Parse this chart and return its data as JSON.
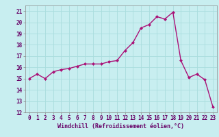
{
  "x": [
    0,
    1,
    2,
    3,
    4,
    5,
    6,
    7,
    8,
    9,
    10,
    11,
    12,
    13,
    14,
    15,
    16,
    17,
    18,
    19,
    20,
    21,
    22,
    23
  ],
  "y": [
    15.0,
    15.4,
    15.0,
    15.6,
    15.8,
    15.9,
    16.1,
    16.3,
    16.3,
    16.3,
    16.5,
    16.6,
    17.5,
    18.2,
    19.5,
    19.8,
    20.5,
    20.3,
    20.9,
    16.6,
    15.1,
    15.4,
    14.9,
    12.5
  ],
  "line_color": "#aa1177",
  "marker": "D",
  "marker_size": 2.0,
  "bg_color": "#c8eef0",
  "grid_color": "#aadddd",
  "xlabel": "Windchill (Refroidissement éolien,°C)",
  "ylim": [
    12,
    21.5
  ],
  "yticks": [
    12,
    13,
    14,
    15,
    16,
    17,
    18,
    19,
    20,
    21
  ],
  "xlim": [
    -0.5,
    23.5
  ],
  "xticks": [
    0,
    1,
    2,
    3,
    4,
    5,
    6,
    7,
    8,
    9,
    10,
    11,
    12,
    13,
    14,
    15,
    16,
    17,
    18,
    19,
    20,
    21,
    22,
    23
  ],
  "tick_fontsize": 5.5,
  "xlabel_fontsize": 6.0,
  "line_width": 1.0
}
